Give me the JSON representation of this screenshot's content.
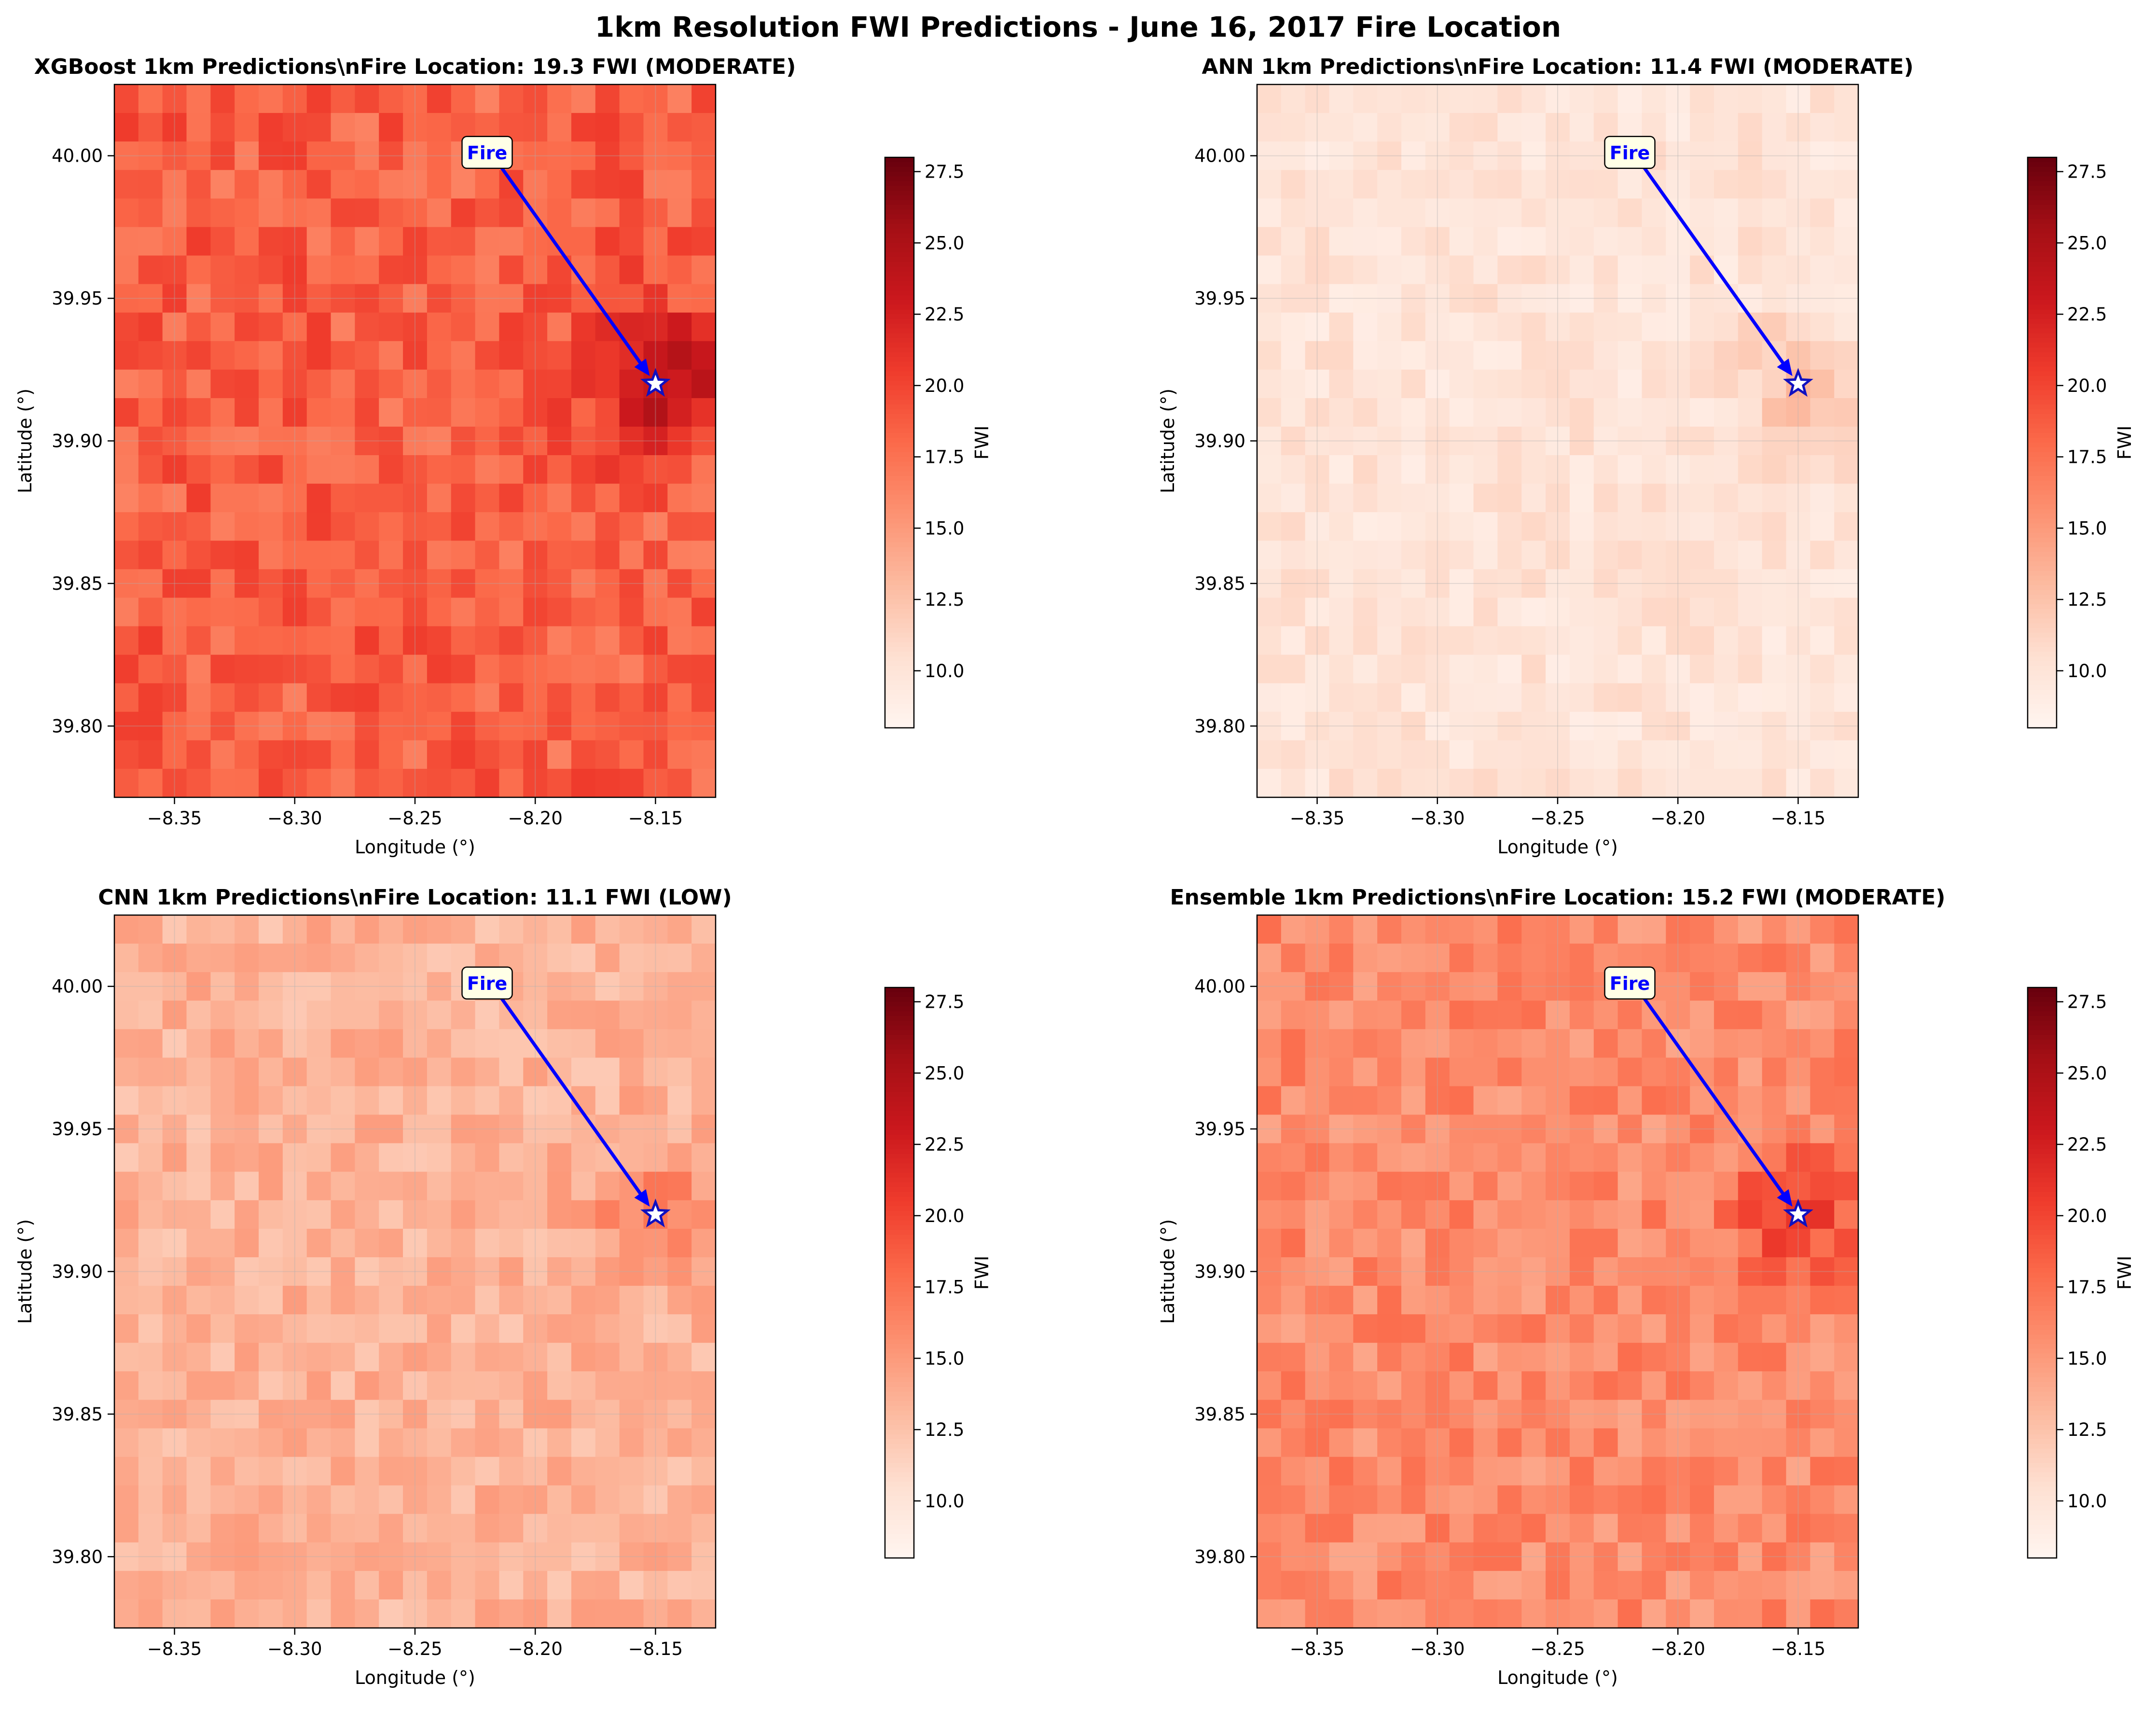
{
  "figure": {
    "suptitle": "1km Resolution FWI Predictions - June 16, 2017 Fire Location"
  },
  "colors": {
    "ramp": [
      "#fff5f0",
      "#fee0d2",
      "#fcbba1",
      "#fc9272",
      "#fb6a4a",
      "#ef3b2c",
      "#cb181d",
      "#a50f15",
      "#67000d"
    ],
    "arrow": "#0000ff",
    "label_text": "#0000ff",
    "label_box": "#ffffe6"
  },
  "chart_data": [
    {
      "type": "heatmap",
      "title": "XGBoost 1km Predictions\\nFire Location: 19.3 FWI (MODERATE)",
      "xlabel": "Longitude (°)",
      "ylabel": "Latitude (°)",
      "xlim": [
        -8.375,
        -8.125
      ],
      "ylim": [
        39.775,
        40.025
      ],
      "xticks": [
        -8.35,
        -8.3,
        -8.25,
        -8.2,
        -8.15
      ],
      "xtick_labels": [
        "−8.35",
        "−8.30",
        "−8.25",
        "−8.20",
        "−8.15"
      ],
      "yticks": [
        39.8,
        39.85,
        39.9,
        39.95,
        40.0
      ],
      "ytick_labels": [
        "39.80",
        "39.85",
        "39.90",
        "39.95",
        "40.00"
      ],
      "grid_cells": [
        25,
        25
      ],
      "mean_fwi": 18.5,
      "hotspot_fwi": 25.0,
      "fire_location": {
        "lon": -8.15,
        "lat": 39.92,
        "fwi": 19.3,
        "category": "MODERATE"
      },
      "annotation": {
        "text": "Fire",
        "lon": -8.22,
        "lat": 40.001
      },
      "colorbar": {
        "label": "FWI",
        "min": 8.0,
        "max": 28.0,
        "ticks": [
          10.0,
          12.5,
          15.0,
          17.5,
          20.0,
          22.5,
          25.0,
          27.5
        ],
        "tick_labels": [
          "10.0",
          "12.5",
          "15.0",
          "17.5",
          "20.0",
          "22.5",
          "25.0",
          "27.5"
        ]
      }
    },
    {
      "type": "heatmap",
      "title": "ANN 1km Predictions\\nFire Location: 11.4 FWI (MODERATE)",
      "xlabel": "Longitude (°)",
      "ylabel": "Latitude (°)",
      "xlim": [
        -8.375,
        -8.125
      ],
      "ylim": [
        39.775,
        40.025
      ],
      "xticks": [
        -8.35,
        -8.3,
        -8.25,
        -8.2,
        -8.15
      ],
      "xtick_labels": [
        "−8.35",
        "−8.30",
        "−8.25",
        "−8.20",
        "−8.15"
      ],
      "yticks": [
        39.8,
        39.85,
        39.9,
        39.95,
        40.0
      ],
      "ytick_labels": [
        "39.80",
        "39.85",
        "39.90",
        "39.95",
        "40.00"
      ],
      "grid_cells": [
        25,
        25
      ],
      "mean_fwi": 10.0,
      "hotspot_fwi": 12.5,
      "fire_location": {
        "lon": -8.15,
        "lat": 39.92,
        "fwi": 11.4,
        "category": "MODERATE"
      },
      "annotation": {
        "text": "Fire",
        "lon": -8.22,
        "lat": 40.001
      },
      "colorbar": {
        "label": "FWI",
        "min": 8.0,
        "max": 28.0,
        "ticks": [
          10.0,
          12.5,
          15.0,
          17.5,
          20.0,
          22.5,
          25.0,
          27.5
        ],
        "tick_labels": [
          "10.0",
          "12.5",
          "15.0",
          "17.5",
          "20.0",
          "22.5",
          "25.0",
          "27.5"
        ]
      }
    },
    {
      "type": "heatmap",
      "title": "CNN 1km Predictions\\nFire Location: 11.1 FWI (LOW)",
      "xlabel": "Longitude (°)",
      "ylabel": "Latitude (°)",
      "xlim": [
        -8.375,
        -8.125
      ],
      "ylim": [
        39.775,
        40.025
      ],
      "xticks": [
        -8.35,
        -8.3,
        -8.25,
        -8.2,
        -8.15
      ],
      "xtick_labels": [
        "−8.35",
        "−8.30",
        "−8.25",
        "−8.20",
        "−8.15"
      ],
      "yticks": [
        39.8,
        39.85,
        39.9,
        39.95,
        40.0
      ],
      "ytick_labels": [
        "39.80",
        "39.85",
        "39.90",
        "39.95",
        "40.00"
      ],
      "grid_cells": [
        25,
        25
      ],
      "mean_fwi": 13.5,
      "hotspot_fwi": 16.5,
      "fire_location": {
        "lon": -8.15,
        "lat": 39.92,
        "fwi": 11.1,
        "category": "LOW"
      },
      "annotation": {
        "text": "Fire",
        "lon": -8.22,
        "lat": 40.001
      },
      "colorbar": {
        "label": "FWI",
        "min": 8.0,
        "max": 28.0,
        "ticks": [
          10.0,
          12.5,
          15.0,
          17.5,
          20.0,
          22.5,
          25.0,
          27.5
        ],
        "tick_labels": [
          "10.0",
          "12.5",
          "15.0",
          "17.5",
          "20.0",
          "22.5",
          "25.0",
          "27.5"
        ]
      }
    },
    {
      "type": "heatmap",
      "title": "Ensemble 1km Predictions\\nFire Location: 15.2 FWI (MODERATE)",
      "xlabel": "Longitude (°)",
      "ylabel": "Latitude (°)",
      "xlim": [
        -8.375,
        -8.125
      ],
      "ylim": [
        39.775,
        40.025
      ],
      "xticks": [
        -8.35,
        -8.3,
        -8.25,
        -8.2,
        -8.15
      ],
      "xtick_labels": [
        "−8.35",
        "−8.30",
        "−8.25",
        "−8.20",
        "−8.15"
      ],
      "yticks": [
        39.8,
        39.85,
        39.9,
        39.95,
        40.0
      ],
      "ytick_labels": [
        "39.80",
        "39.85",
        "39.90",
        "39.95",
        "40.00"
      ],
      "grid_cells": [
        25,
        25
      ],
      "mean_fwi": 16.0,
      "hotspot_fwi": 20.5,
      "fire_location": {
        "lon": -8.15,
        "lat": 39.92,
        "fwi": 15.2,
        "category": "MODERATE"
      },
      "annotation": {
        "text": "Fire",
        "lon": -8.22,
        "lat": 40.001
      },
      "colorbar": {
        "label": "FWI",
        "min": 8.0,
        "max": 28.0,
        "ticks": [
          10.0,
          12.5,
          15.0,
          17.5,
          20.0,
          22.5,
          25.0,
          27.5
        ],
        "tick_labels": [
          "10.0",
          "12.5",
          "15.0",
          "17.5",
          "20.0",
          "22.5",
          "25.0",
          "27.5"
        ]
      }
    }
  ]
}
